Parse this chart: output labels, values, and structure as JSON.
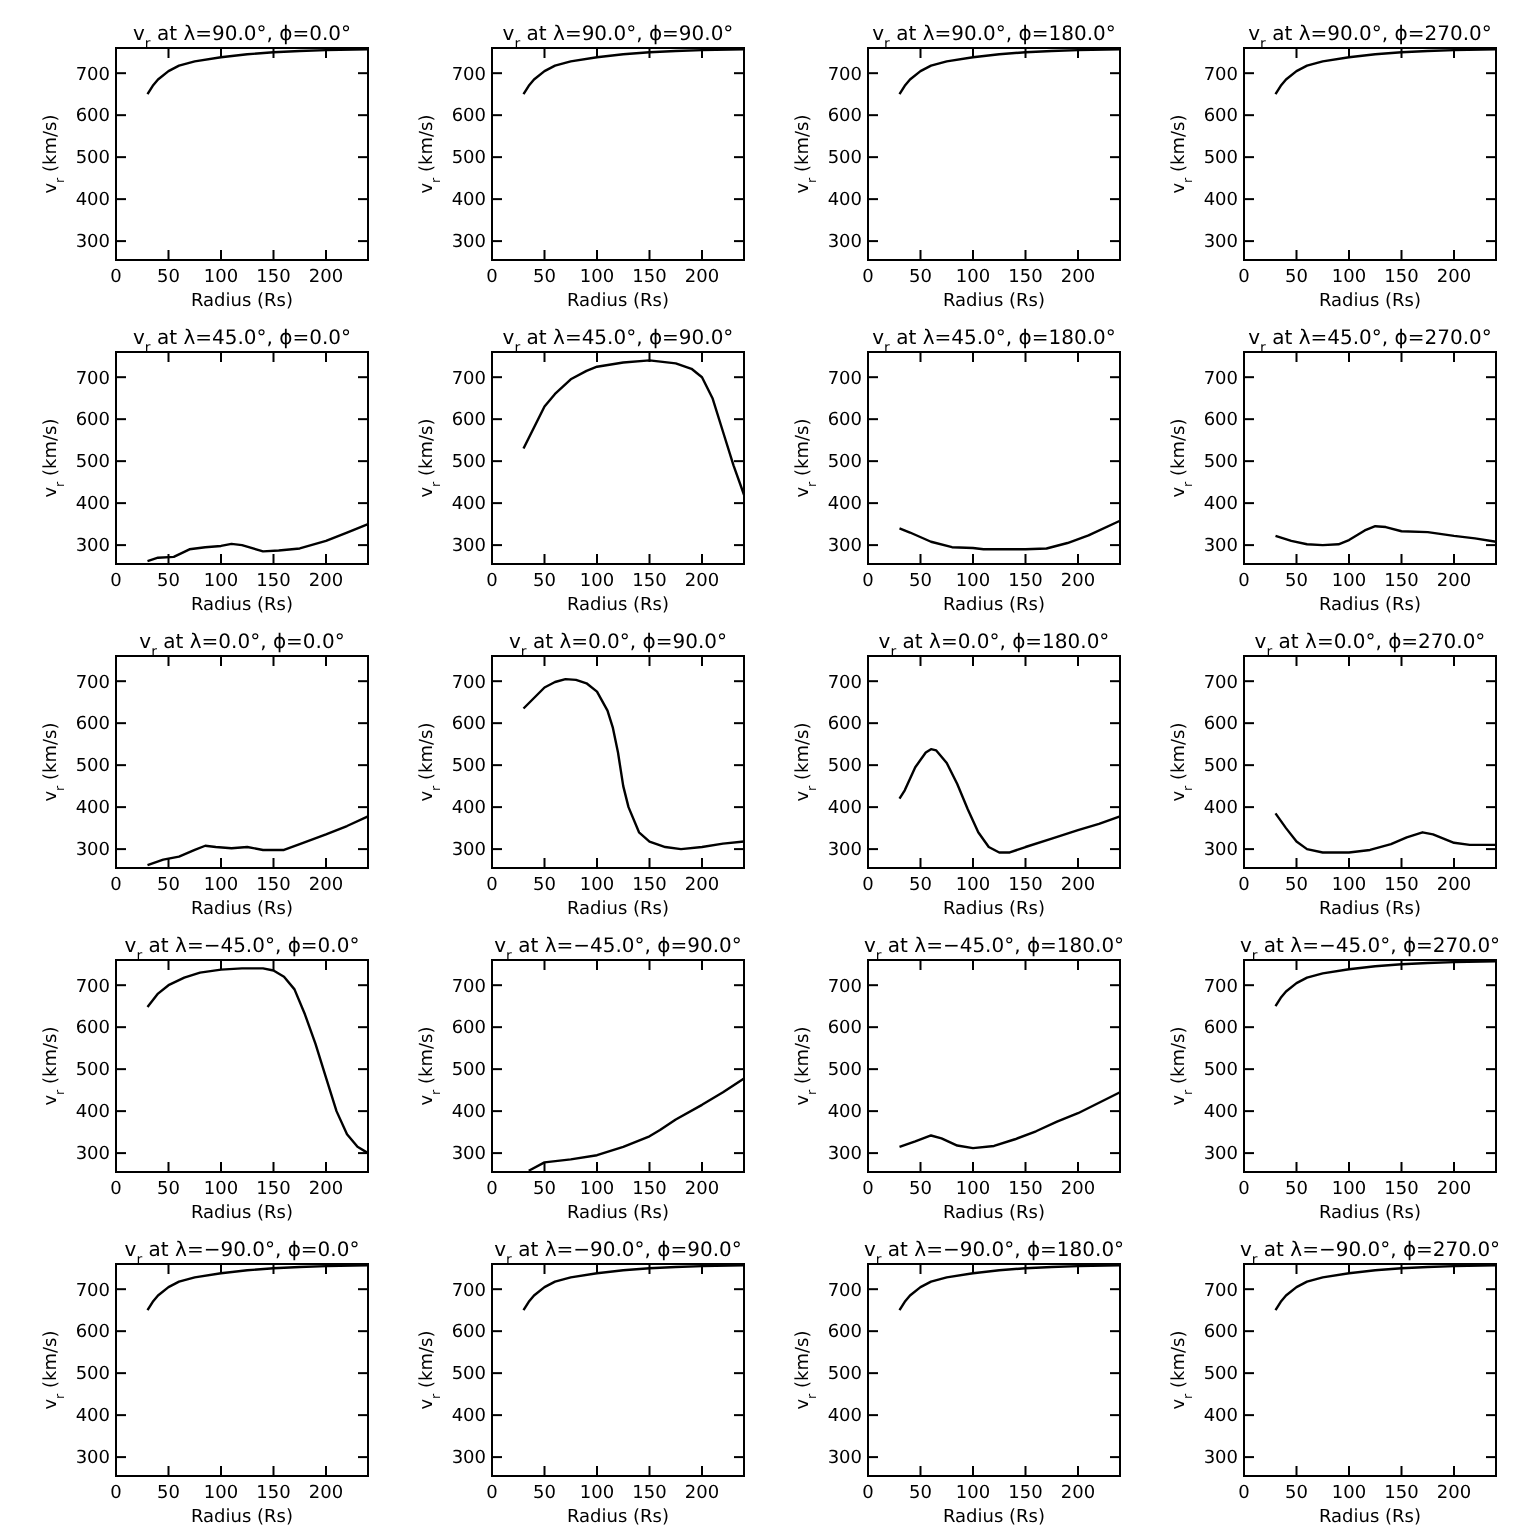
{
  "chart_data": [
    {
      "type": "line",
      "title": "v$_{r}$ at λ=90.0°, ϕ=0.0°",
      "xlabel": "Radius (Rs)",
      "ylabel": "v$_{r}$ (km/s)",
      "xlim": [
        0,
        240
      ],
      "ylim": [
        255,
        760
      ],
      "xticks": [
        0,
        50,
        100,
        150,
        200
      ],
      "yticks": [
        300,
        400,
        500,
        600,
        700
      ],
      "series": [
        {
          "color": "#000000",
          "x": [
            30,
            35,
            40,
            50,
            60,
            75,
            100,
            125,
            150,
            175,
            200,
            240
          ],
          "values": [
            650,
            670,
            685,
            705,
            718,
            728,
            738,
            745,
            750,
            753,
            755,
            757
          ]
        }
      ]
    },
    {
      "type": "line",
      "title": "v$_{r}$ at λ=90.0°, ϕ=90.0°",
      "xlabel": "Radius (Rs)",
      "ylabel": "v$_{r}$ (km/s)",
      "xlim": [
        0,
        240
      ],
      "ylim": [
        255,
        760
      ],
      "xticks": [
        0,
        50,
        100,
        150,
        200
      ],
      "yticks": [
        300,
        400,
        500,
        600,
        700
      ],
      "series": [
        {
          "color": "#000000",
          "x": [
            30,
            35,
            40,
            50,
            60,
            75,
            100,
            125,
            150,
            175,
            200,
            240
          ],
          "values": [
            650,
            670,
            685,
            705,
            718,
            728,
            738,
            745,
            750,
            753,
            755,
            757
          ]
        }
      ]
    },
    {
      "type": "line",
      "title": "v$_{r}$ at λ=90.0°, ϕ=180.0°",
      "xlabel": "Radius (Rs)",
      "ylabel": "v$_{r}$ (km/s)",
      "xlim": [
        0,
        240
      ],
      "ylim": [
        255,
        760
      ],
      "xticks": [
        0,
        50,
        100,
        150,
        200
      ],
      "yticks": [
        300,
        400,
        500,
        600,
        700
      ],
      "series": [
        {
          "color": "#000000",
          "x": [
            30,
            35,
            40,
            50,
            60,
            75,
            100,
            125,
            150,
            175,
            200,
            240
          ],
          "values": [
            650,
            670,
            685,
            705,
            718,
            728,
            738,
            745,
            750,
            753,
            755,
            757
          ]
        }
      ]
    },
    {
      "type": "line",
      "title": "v$_{r}$ at λ=90.0°, ϕ=270.0°",
      "xlabel": "Radius (Rs)",
      "ylabel": "v$_{r}$ (km/s)",
      "xlim": [
        0,
        240
      ],
      "ylim": [
        255,
        760
      ],
      "xticks": [
        0,
        50,
        100,
        150,
        200
      ],
      "yticks": [
        300,
        400,
        500,
        600,
        700
      ],
      "series": [
        {
          "color": "#000000",
          "x": [
            30,
            35,
            40,
            50,
            60,
            75,
            100,
            125,
            150,
            175,
            200,
            240
          ],
          "values": [
            650,
            670,
            685,
            705,
            718,
            728,
            738,
            745,
            750,
            753,
            755,
            757
          ]
        }
      ]
    },
    {
      "type": "line",
      "title": "v$_{r}$ at λ=45.0°, ϕ=0.0°",
      "xlabel": "Radius (Rs)",
      "ylabel": "v$_{r}$ (km/s)",
      "xlim": [
        0,
        240
      ],
      "ylim": [
        255,
        760
      ],
      "xticks": [
        0,
        50,
        100,
        150,
        200
      ],
      "yticks": [
        300,
        400,
        500,
        600,
        700
      ],
      "series": [
        {
          "color": "#000000",
          "x": [
            30,
            40,
            55,
            70,
            85,
            100,
            110,
            120,
            140,
            155,
            175,
            200,
            220,
            240
          ],
          "values": [
            262,
            270,
            272,
            290,
            295,
            298,
            303,
            300,
            285,
            287,
            292,
            310,
            330,
            350
          ]
        }
      ]
    },
    {
      "type": "line",
      "title": "v$_{r}$ at λ=45.0°, ϕ=90.0°",
      "xlabel": "Radius (Rs)",
      "ylabel": "v$_{r}$ (km/s)",
      "xlim": [
        0,
        240
      ],
      "ylim": [
        255,
        760
      ],
      "xticks": [
        0,
        50,
        100,
        150,
        200
      ],
      "yticks": [
        300,
        400,
        500,
        600,
        700
      ],
      "series": [
        {
          "color": "#000000",
          "x": [
            30,
            35,
            50,
            60,
            75,
            90,
            100,
            125,
            150,
            175,
            190,
            200,
            210,
            220,
            230,
            240
          ],
          "values": [
            530,
            555,
            630,
            660,
            695,
            715,
            725,
            735,
            740,
            733,
            720,
            700,
            650,
            570,
            490,
            420
          ]
        }
      ]
    },
    {
      "type": "line",
      "title": "v$_{r}$ at λ=45.0°, ϕ=180.0°",
      "xlabel": "Radius (Rs)",
      "ylabel": "v$_{r}$ (km/s)",
      "xlim": [
        0,
        240
      ],
      "ylim": [
        255,
        760
      ],
      "xticks": [
        0,
        50,
        100,
        150,
        200
      ],
      "yticks": [
        300,
        400,
        500,
        600,
        700
      ],
      "series": [
        {
          "color": "#000000",
          "x": [
            30,
            40,
            60,
            80,
            100,
            110,
            150,
            170,
            190,
            210,
            240
          ],
          "values": [
            340,
            330,
            308,
            295,
            293,
            290,
            290,
            292,
            305,
            323,
            358
          ]
        }
      ]
    },
    {
      "type": "line",
      "title": "v$_{r}$ at λ=45.0°, ϕ=270.0°",
      "xlabel": "Radius (Rs)",
      "ylabel": "v$_{r}$ (km/s)",
      "xlim": [
        0,
        240
      ],
      "ylim": [
        255,
        760
      ],
      "xticks": [
        0,
        50,
        100,
        150,
        200
      ],
      "yticks": [
        300,
        400,
        500,
        600,
        700
      ],
      "series": [
        {
          "color": "#000000",
          "x": [
            30,
            45,
            60,
            75,
            90,
            100,
            115,
            125,
            135,
            150,
            175,
            200,
            220,
            240
          ],
          "values": [
            322,
            310,
            302,
            300,
            302,
            312,
            335,
            345,
            343,
            333,
            331,
            322,
            316,
            308
          ]
        }
      ]
    },
    {
      "type": "line",
      "title": "v$_{r}$ at λ=0.0°, ϕ=0.0°",
      "xlabel": "Radius (Rs)",
      "ylabel": "v$_{r}$ (km/s)",
      "xlim": [
        0,
        240
      ],
      "ylim": [
        255,
        760
      ],
      "xticks": [
        0,
        50,
        100,
        150,
        200
      ],
      "yticks": [
        300,
        400,
        500,
        600,
        700
      ],
      "series": [
        {
          "color": "#000000",
          "x": [
            30,
            45,
            60,
            75,
            85,
            95,
            110,
            125,
            140,
            160,
            175,
            200,
            220,
            240
          ],
          "values": [
            262,
            275,
            282,
            298,
            308,
            305,
            302,
            305,
            298,
            298,
            312,
            335,
            355,
            378
          ]
        }
      ]
    },
    {
      "type": "line",
      "title": "v$_{r}$ at λ=0.0°, ϕ=90.0°",
      "xlabel": "Radius (Rs)",
      "ylabel": "v$_{r}$ (km/s)",
      "xlim": [
        0,
        240
      ],
      "ylim": [
        255,
        760
      ],
      "xticks": [
        0,
        50,
        100,
        150,
        200
      ],
      "yticks": [
        300,
        400,
        500,
        600,
        700
      ],
      "series": [
        {
          "color": "#000000",
          "x": [
            30,
            40,
            50,
            60,
            70,
            80,
            90,
            100,
            110,
            115,
            120,
            125,
            130,
            140,
            150,
            165,
            180,
            200,
            220,
            240
          ],
          "values": [
            635,
            660,
            685,
            698,
            705,
            703,
            695,
            675,
            630,
            590,
            530,
            450,
            400,
            340,
            318,
            305,
            300,
            305,
            313,
            318
          ]
        }
      ]
    },
    {
      "type": "line",
      "title": "v$_{r}$ at λ=0.0°, ϕ=180.0°",
      "xlabel": "Radius (Rs)",
      "ylabel": "v$_{r}$ (km/s)",
      "xlim": [
        0,
        240
      ],
      "ylim": [
        255,
        760
      ],
      "xticks": [
        0,
        50,
        100,
        150,
        200
      ],
      "yticks": [
        300,
        400,
        500,
        600,
        700
      ],
      "series": [
        {
          "color": "#000000",
          "x": [
            30,
            35,
            45,
            55,
            60,
            65,
            75,
            85,
            95,
            105,
            115,
            125,
            135,
            150,
            175,
            200,
            220,
            240
          ],
          "values": [
            420,
            440,
            495,
            530,
            538,
            535,
            505,
            455,
            395,
            340,
            305,
            292,
            292,
            305,
            325,
            345,
            360,
            378
          ]
        }
      ]
    },
    {
      "type": "line",
      "title": "v$_{r}$ at λ=0.0°, ϕ=270.0°",
      "xlabel": "Radius (Rs)",
      "ylabel": "v$_{r}$ (km/s)",
      "xlim": [
        0,
        240
      ],
      "ylim": [
        255,
        760
      ],
      "xticks": [
        0,
        50,
        100,
        150,
        200
      ],
      "yticks": [
        300,
        400,
        500,
        600,
        700
      ],
      "series": [
        {
          "color": "#000000",
          "x": [
            30,
            40,
            50,
            60,
            75,
            100,
            120,
            140,
            155,
            170,
            180,
            200,
            215,
            240
          ],
          "values": [
            385,
            350,
            318,
            300,
            292,
            292,
            298,
            312,
            328,
            340,
            335,
            315,
            310,
            310
          ]
        }
      ]
    },
    {
      "type": "line",
      "title": "v$_{r}$ at λ=−45.0°, ϕ=0.0°",
      "xlabel": "Radius (Rs)",
      "ylabel": "v$_{r}$ (km/s)",
      "xlim": [
        0,
        240
      ],
      "ylim": [
        255,
        760
      ],
      "xticks": [
        0,
        50,
        100,
        150,
        200
      ],
      "yticks": [
        300,
        400,
        500,
        600,
        700
      ],
      "series": [
        {
          "color": "#000000",
          "x": [
            30,
            40,
            50,
            65,
            80,
            100,
            120,
            140,
            150,
            160,
            170,
            180,
            190,
            200,
            210,
            220,
            230,
            240
          ],
          "values": [
            648,
            680,
            700,
            718,
            730,
            737,
            740,
            740,
            735,
            720,
            690,
            630,
            560,
            480,
            400,
            345,
            315,
            300
          ]
        }
      ]
    },
    {
      "type": "line",
      "title": "v$_{r}$ at λ=−45.0°, ϕ=90.0°",
      "xlabel": "Radius (Rs)",
      "ylabel": "v$_{r}$ (km/s)",
      "xlim": [
        0,
        240
      ],
      "ylim": [
        255,
        760
      ],
      "xticks": [
        0,
        50,
        100,
        150,
        200
      ],
      "yticks": [
        300,
        400,
        500,
        600,
        700
      ],
      "series": [
        {
          "color": "#000000",
          "x": [
            35,
            50,
            75,
            100,
            125,
            150,
            160,
            175,
            200,
            220,
            240
          ],
          "values": [
            258,
            278,
            285,
            295,
            315,
            340,
            355,
            380,
            415,
            445,
            478
          ]
        }
      ]
    },
    {
      "type": "line",
      "title": "v$_{r}$ at λ=−45.0°, ϕ=180.0°",
      "xlabel": "Radius (Rs)",
      "ylabel": "v$_{r}$ (km/s)",
      "xlim": [
        0,
        240
      ],
      "ylim": [
        255,
        760
      ],
      "xticks": [
        0,
        50,
        100,
        150,
        200
      ],
      "yticks": [
        300,
        400,
        500,
        600,
        700
      ],
      "series": [
        {
          "color": "#000000",
          "x": [
            30,
            45,
            60,
            70,
            85,
            100,
            120,
            140,
            160,
            180,
            200,
            220,
            240
          ],
          "values": [
            315,
            328,
            342,
            335,
            318,
            312,
            317,
            333,
            352,
            375,
            395,
            420,
            445
          ]
        }
      ]
    },
    {
      "type": "line",
      "title": "v$_{r}$ at λ=−45.0°, ϕ=270.0°",
      "xlabel": "Radius (Rs)",
      "ylabel": "v$_{r}$ (km/s)",
      "xlim": [
        0,
        240
      ],
      "ylim": [
        255,
        760
      ],
      "xticks": [
        0,
        50,
        100,
        150,
        200
      ],
      "yticks": [
        300,
        400,
        500,
        600,
        700
      ],
      "series": [
        {
          "color": "#000000",
          "x": [
            30,
            35,
            40,
            50,
            60,
            75,
            100,
            125,
            150,
            175,
            200,
            240
          ],
          "values": [
            650,
            670,
            685,
            705,
            718,
            728,
            738,
            745,
            750,
            753,
            755,
            757
          ]
        }
      ]
    },
    {
      "type": "line",
      "title": "v$_{r}$ at λ=−90.0°, ϕ=0.0°",
      "xlabel": "Radius (Rs)",
      "ylabel": "v$_{r}$ (km/s)",
      "xlim": [
        0,
        240
      ],
      "ylim": [
        255,
        760
      ],
      "xticks": [
        0,
        50,
        100,
        150,
        200
      ],
      "yticks": [
        300,
        400,
        500,
        600,
        700
      ],
      "series": [
        {
          "color": "#000000",
          "x": [
            30,
            35,
            40,
            50,
            60,
            75,
            100,
            125,
            150,
            175,
            200,
            240
          ],
          "values": [
            650,
            670,
            685,
            705,
            718,
            728,
            738,
            745,
            750,
            753,
            755,
            757
          ]
        }
      ]
    },
    {
      "type": "line",
      "title": "v$_{r}$ at λ=−90.0°, ϕ=90.0°",
      "xlabel": "Radius (Rs)",
      "ylabel": "v$_{r}$ (km/s)",
      "xlim": [
        0,
        240
      ],
      "ylim": [
        255,
        760
      ],
      "xticks": [
        0,
        50,
        100,
        150,
        200
      ],
      "yticks": [
        300,
        400,
        500,
        600,
        700
      ],
      "series": [
        {
          "color": "#000000",
          "x": [
            30,
            35,
            40,
            50,
            60,
            75,
            100,
            125,
            150,
            175,
            200,
            240
          ],
          "values": [
            650,
            670,
            685,
            705,
            718,
            728,
            738,
            745,
            750,
            753,
            755,
            757
          ]
        }
      ]
    },
    {
      "type": "line",
      "title": "v$_{r}$ at λ=−90.0°, ϕ=180.0°",
      "xlabel": "Radius (Rs)",
      "ylabel": "v$_{r}$ (km/s)",
      "xlim": [
        0,
        240
      ],
      "ylim": [
        255,
        760
      ],
      "xticks": [
        0,
        50,
        100,
        150,
        200
      ],
      "yticks": [
        300,
        400,
        500,
        600,
        700
      ],
      "series": [
        {
          "color": "#000000",
          "x": [
            30,
            35,
            40,
            50,
            60,
            75,
            100,
            125,
            150,
            175,
            200,
            240
          ],
          "values": [
            650,
            670,
            685,
            705,
            718,
            728,
            738,
            745,
            750,
            753,
            755,
            757
          ]
        }
      ]
    },
    {
      "type": "line",
      "title": "v$_{r}$ at λ=−90.0°, ϕ=270.0°",
      "xlabel": "Radius (Rs)",
      "ylabel": "v$_{r}$ (km/s)",
      "xlim": [
        0,
        240
      ],
      "ylim": [
        255,
        760
      ],
      "xticks": [
        0,
        50,
        100,
        150,
        200
      ],
      "yticks": [
        300,
        400,
        500,
        600,
        700
      ],
      "series": [
        {
          "color": "#000000",
          "x": [
            30,
            35,
            40,
            50,
            60,
            75,
            100,
            125,
            150,
            175,
            200,
            240
          ],
          "values": [
            650,
            670,
            685,
            705,
            718,
            728,
            738,
            745,
            750,
            753,
            755,
            757
          ]
        }
      ]
    }
  ]
}
